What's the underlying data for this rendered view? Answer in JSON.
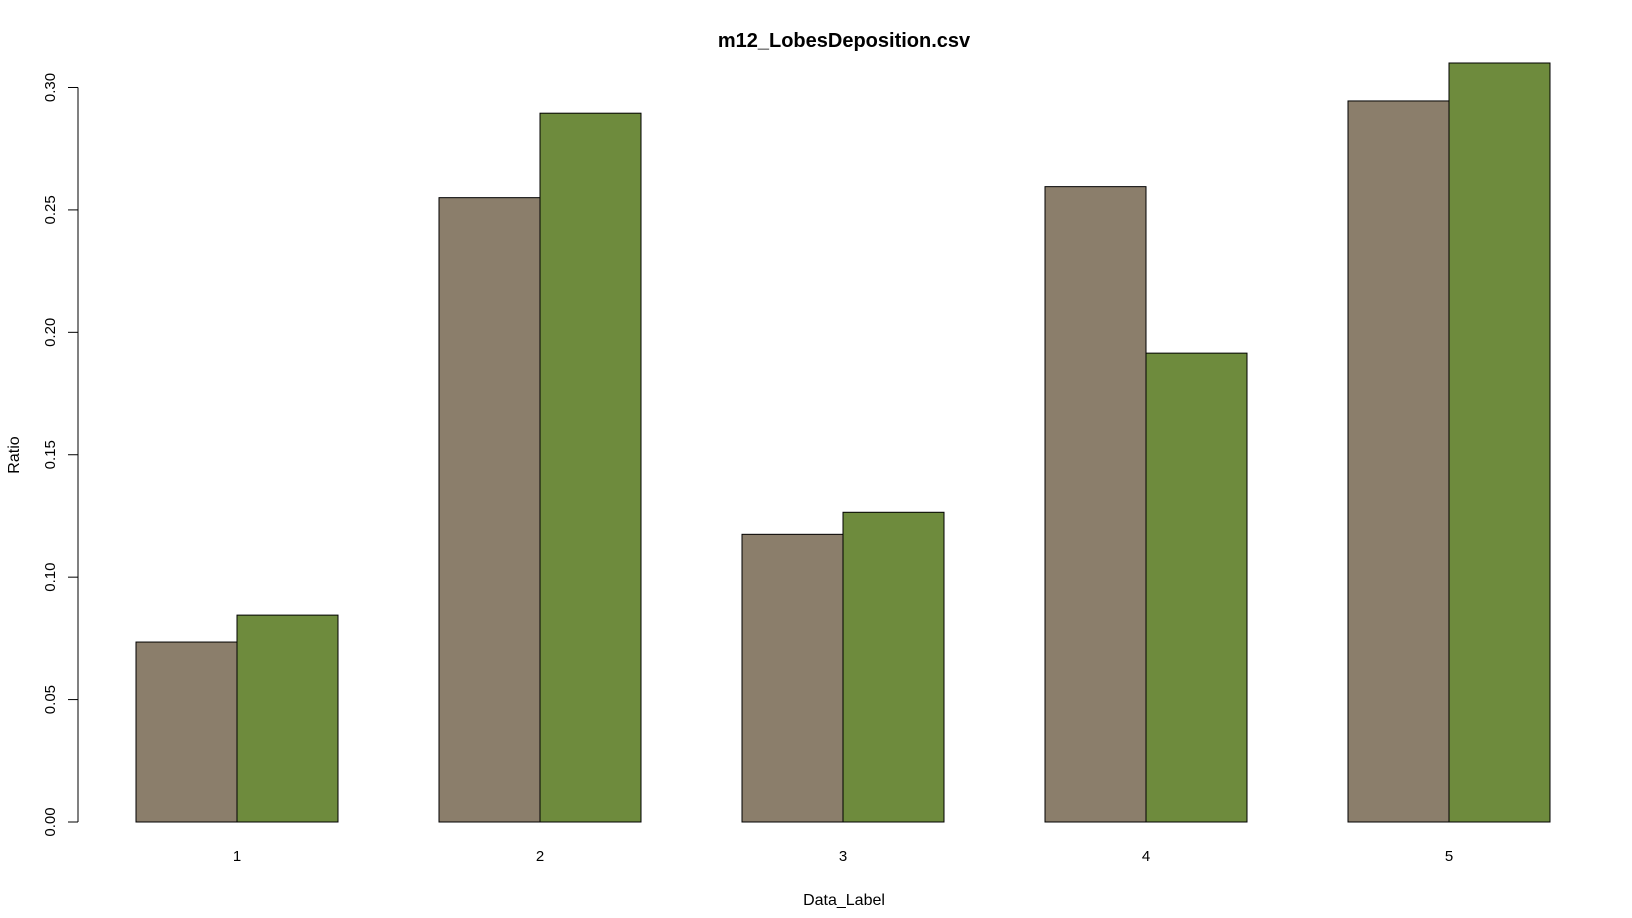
{
  "chart_data": {
    "type": "bar",
    "title": "m12_LobesDeposition.csv",
    "xlabel": "Data_Label",
    "ylabel": "Ratio",
    "categories": [
      "1",
      "2",
      "3",
      "4",
      "5"
    ],
    "series": [
      {
        "values": [
          0.0735,
          0.255,
          0.1175,
          0.2595,
          0.2945
        ],
        "color": "#8b7e6b"
      },
      {
        "values": [
          0.0845,
          0.2895,
          0.1265,
          0.1915,
          0.31
        ],
        "color": "#6e8b3d"
      }
    ],
    "ylim": [
      0,
      0.3
    ],
    "yticks": [
      "0.00",
      "0.05",
      "0.10",
      "0.15",
      "0.20",
      "0.25",
      "0.30"
    ],
    "grid": false,
    "legend": "none"
  }
}
